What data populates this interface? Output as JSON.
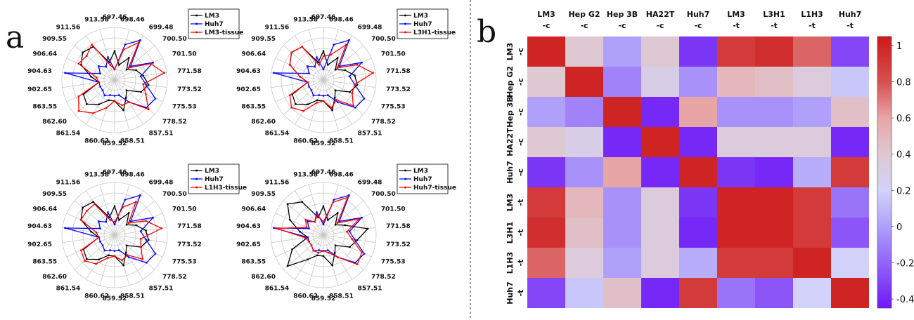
{
  "panel_a": {
    "label": "a"
  },
  "panel_b": {
    "label": "b"
  },
  "chart_data": [
    {
      "type": "radar",
      "spokes": [
        "697.46",
        "698.46",
        "699.48",
        "700.50",
        "701.50",
        "771.58",
        "773.52",
        "775.53",
        "778.52",
        "857.51",
        "858.51",
        "859.52",
        "860.62",
        "861.54",
        "862.60",
        "863.55",
        "902.65",
        "904.63",
        "906.64",
        "909.55",
        "911.56",
        "913.58"
      ],
      "rings": 5,
      "series": [
        {
          "name": "LM3",
          "color": "#000000",
          "values": [
            0.55,
            0.3,
            0.5,
            0.3,
            0.45,
            0.55,
            0.65,
            0.55,
            0.3,
            0.4,
            0.6,
            0.4,
            0.4,
            0.55,
            0.7,
            0.65,
            0.3,
            0.45,
            0.7,
            0.8,
            0.75,
            0.35
          ]
        },
        {
          "name": "Huh7",
          "color": "#0000ff",
          "values": [
            0.2,
            0.7,
            0.9,
            0.4,
            0.8,
            0.5,
            0.6,
            0.85,
            0.8,
            0.5,
            0.3,
            0.3,
            0.3,
            0.35,
            0.3,
            0.3,
            0.3,
            0.95,
            0.3,
            0.4,
            0.3,
            0.45
          ]
        },
        {
          "name": "LM3-tissue",
          "color": "#ff0000",
          "values": [
            0.2,
            0.6,
            0.85,
            0.35,
            0.75,
            0.95,
            0.55,
            0.65,
            0.85,
            0.5,
            0.5,
            0.4,
            0.55,
            0.75,
            0.9,
            0.75,
            0.3,
            0.35,
            0.75,
            0.7,
            0.8,
            0.3
          ]
        }
      ]
    },
    {
      "type": "radar",
      "spokes": [
        "697.46",
        "698.46",
        "699.48",
        "700.50",
        "701.50",
        "771.58",
        "773.52",
        "775.53",
        "778.52",
        "857.51",
        "858.51",
        "859.52",
        "860.62",
        "861.54",
        "862.60",
        "863.55",
        "902.65",
        "904.63",
        "906.64",
        "909.55",
        "911.56",
        "913.58"
      ],
      "rings": 5,
      "series": [
        {
          "name": "LM3",
          "color": "#000000",
          "values": [
            0.55,
            0.3,
            0.5,
            0.3,
            0.45,
            0.6,
            0.65,
            0.55,
            0.3,
            0.4,
            0.6,
            0.4,
            0.4,
            0.55,
            0.7,
            0.65,
            0.3,
            0.45,
            0.7,
            0.8,
            0.75,
            0.35
          ]
        },
        {
          "name": "Huh7",
          "color": "#0000ff",
          "values": [
            0.2,
            0.7,
            0.9,
            0.4,
            0.8,
            0.5,
            0.6,
            0.85,
            0.8,
            0.5,
            0.3,
            0.3,
            0.3,
            0.35,
            0.3,
            0.3,
            0.3,
            0.95,
            0.3,
            0.4,
            0.3,
            0.45
          ]
        },
        {
          "name": "L3H1-tissue",
          "color": "#ff0000",
          "values": [
            0.45,
            0.5,
            0.8,
            0.35,
            0.7,
            0.95,
            0.6,
            0.6,
            0.75,
            0.45,
            0.55,
            0.4,
            0.45,
            0.7,
            0.8,
            0.7,
            0.3,
            0.45,
            0.7,
            0.8,
            0.75,
            0.3
          ]
        }
      ]
    },
    {
      "type": "radar",
      "spokes": [
        "697.46",
        "698.46",
        "699.48",
        "700.50",
        "701.50",
        "771.58",
        "773.52",
        "775.53",
        "778.52",
        "857.51",
        "858.51",
        "859.52",
        "860.62",
        "861.54",
        "862.60",
        "863.55",
        "902.65",
        "904.63",
        "906.64",
        "909.55",
        "911.56",
        "913.58"
      ],
      "rings": 5,
      "series": [
        {
          "name": "LM3",
          "color": "#000000",
          "values": [
            0.55,
            0.3,
            0.5,
            0.3,
            0.45,
            0.6,
            0.65,
            0.55,
            0.3,
            0.4,
            0.6,
            0.4,
            0.4,
            0.55,
            0.7,
            0.65,
            0.3,
            0.45,
            0.7,
            0.8,
            0.75,
            0.35
          ]
        },
        {
          "name": "Huh7",
          "color": "#0000ff",
          "values": [
            0.2,
            0.7,
            0.9,
            0.4,
            0.8,
            0.5,
            0.6,
            0.85,
            0.8,
            0.5,
            0.3,
            0.3,
            0.3,
            0.35,
            0.3,
            0.3,
            0.3,
            0.95,
            0.3,
            0.4,
            0.3,
            0.45
          ]
        },
        {
          "name": "L1H3-tissue",
          "color": "#ff0000",
          "values": [
            0.25,
            0.55,
            0.75,
            0.35,
            0.65,
            0.9,
            0.5,
            0.55,
            0.7,
            0.45,
            0.5,
            0.4,
            0.45,
            0.65,
            0.75,
            0.7,
            0.3,
            0.35,
            0.7,
            0.7,
            0.7,
            0.3
          ]
        }
      ]
    },
    {
      "type": "radar",
      "spokes": [
        "697.46",
        "698.46",
        "699.48",
        "700.50",
        "701.50",
        "771.58",
        "773.52",
        "775.53",
        "778.52",
        "857.51",
        "858.51",
        "859.52",
        "860.62",
        "861.54",
        "862.60",
        "863.55",
        "902.65",
        "904.63",
        "906.64",
        "909.55",
        "911.56",
        "913.58"
      ],
      "rings": 5,
      "series": [
        {
          "name": "LM3",
          "color": "#000000",
          "values": [
            0.55,
            0.3,
            0.5,
            0.3,
            0.45,
            0.85,
            0.65,
            0.55,
            0.3,
            0.4,
            0.6,
            0.4,
            0.4,
            0.55,
            0.9,
            0.65,
            0.3,
            0.45,
            0.7,
            0.9,
            0.75,
            0.35
          ]
        },
        {
          "name": "Huh7",
          "color": "#0000ff",
          "values": [
            0.2,
            0.7,
            0.9,
            0.4,
            0.8,
            0.5,
            0.6,
            0.85,
            0.8,
            0.5,
            0.3,
            0.3,
            0.3,
            0.35,
            0.3,
            0.3,
            0.3,
            0.95,
            0.3,
            0.4,
            0.3,
            0.45
          ]
        },
        {
          "name": "Huh7-tissue",
          "color": "#ff0000",
          "values": [
            0.25,
            0.65,
            0.85,
            0.35,
            0.75,
            0.45,
            0.55,
            0.8,
            0.85,
            0.5,
            0.35,
            0.3,
            0.35,
            0.35,
            0.3,
            0.3,
            0.35,
            0.9,
            0.35,
            0.45,
            0.3,
            0.4
          ]
        }
      ]
    },
    {
      "type": "heatmap",
      "col_labels": [
        [
          "LM3",
          "-c"
        ],
        [
          "Hep G2",
          "-c"
        ],
        [
          "Hep 3B",
          "-c"
        ],
        [
          "HA22T",
          "-c"
        ],
        [
          "Huh7",
          "-c"
        ],
        [
          "LM3",
          "-t"
        ],
        [
          "L3H1",
          "-t"
        ],
        [
          "L1H3",
          "-t"
        ],
        [
          "Huh7",
          "-t"
        ]
      ],
      "row_labels": [
        [
          "LM3",
          "-c"
        ],
        [
          "Hep G2",
          "-c"
        ],
        [
          "Hep 3B",
          "-c"
        ],
        [
          "HA22T",
          "-c"
        ],
        [
          "Huh7",
          "-c"
        ],
        [
          "LM3",
          "-t"
        ],
        [
          "L3H1",
          "-t"
        ],
        [
          "L1H3",
          "-t"
        ],
        [
          "Huh7",
          "-t"
        ]
      ],
      "values": [
        [
          1.0,
          0.4,
          0.0,
          0.4,
          -0.35,
          0.9,
          0.95,
          0.75,
          -0.3
        ],
        [
          0.4,
          1.0,
          -0.1,
          0.3,
          -0.05,
          0.5,
          0.45,
          0.35,
          0.15
        ],
        [
          0.0,
          -0.1,
          1.0,
          -0.4,
          0.6,
          -0.05,
          -0.05,
          0.0,
          0.45
        ],
        [
          0.4,
          0.3,
          -0.4,
          1.0,
          -0.4,
          0.35,
          0.35,
          0.35,
          -0.4
        ],
        [
          -0.35,
          -0.05,
          0.6,
          -0.4,
          1.0,
          -0.35,
          -0.4,
          0.05,
          0.9
        ],
        [
          0.9,
          0.5,
          -0.05,
          0.35,
          -0.35,
          1.0,
          1.0,
          0.9,
          -0.15
        ],
        [
          0.95,
          0.45,
          -0.05,
          0.35,
          -0.4,
          1.0,
          1.0,
          0.9,
          -0.25
        ],
        [
          0.75,
          0.35,
          0.0,
          0.35,
          0.05,
          0.9,
          0.9,
          1.0,
          0.2
        ],
        [
          -0.3,
          0.15,
          0.45,
          -0.4,
          0.9,
          -0.15,
          -0.25,
          0.2,
          1.0
        ]
      ],
      "colorbar_ticks": [
        "1",
        "0.8",
        "0.6",
        "0.4",
        "0.2",
        "0",
        "-0.2",
        "-0.4"
      ],
      "colorbar_values": [
        1,
        0.8,
        0.6,
        0.4,
        0.2,
        0,
        -0.2,
        -0.4
      ],
      "vmin": -0.45,
      "vmax": 1.05
    }
  ]
}
